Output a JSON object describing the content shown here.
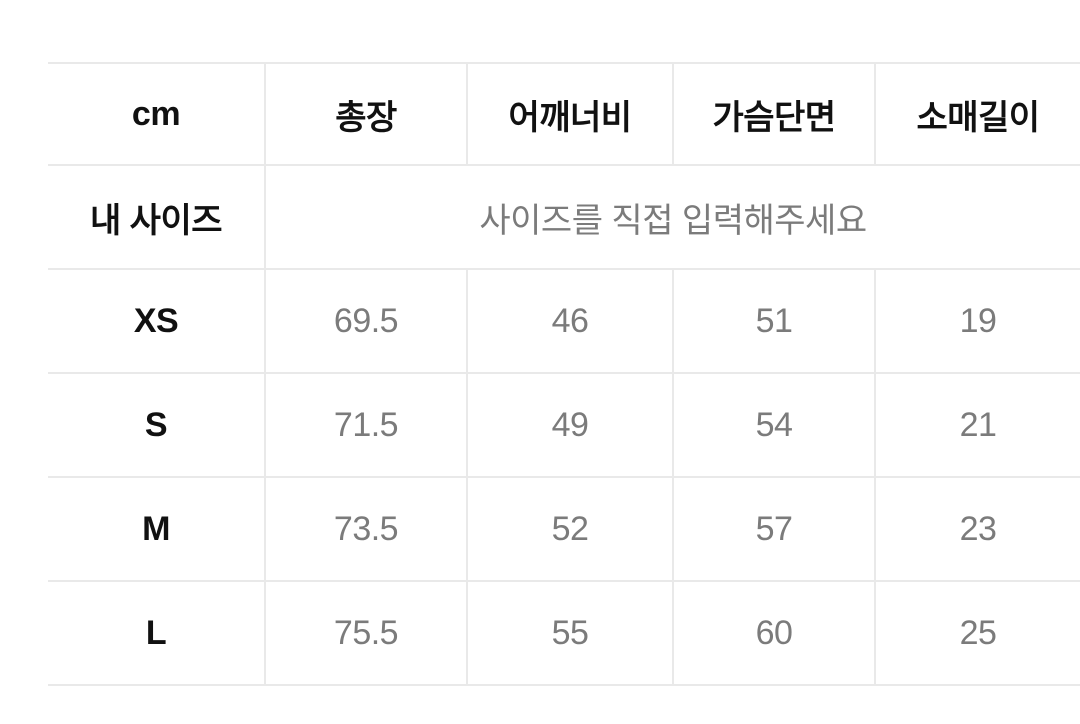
{
  "size_chart": {
    "unit_header": "cm",
    "columns": [
      "총장",
      "어깨너비",
      "가슴단면",
      "소매길이"
    ],
    "my_size": {
      "label": "내 사이즈",
      "placeholder": "사이즈를 직접 입력해주세요"
    },
    "rows": [
      {
        "size": "XS",
        "values": [
          "69.5",
          "46",
          "51",
          "19"
        ]
      },
      {
        "size": "S",
        "values": [
          "71.5",
          "49",
          "54",
          "21"
        ]
      },
      {
        "size": "M",
        "values": [
          "73.5",
          "52",
          "57",
          "23"
        ]
      },
      {
        "size": "L",
        "values": [
          "75.5",
          "55",
          "60",
          "25"
        ]
      }
    ],
    "colors": {
      "background": "#ffffff",
      "grid_border": "#e9e9e9",
      "label_text": "#111111",
      "value_text": "#7b7b7b"
    }
  }
}
